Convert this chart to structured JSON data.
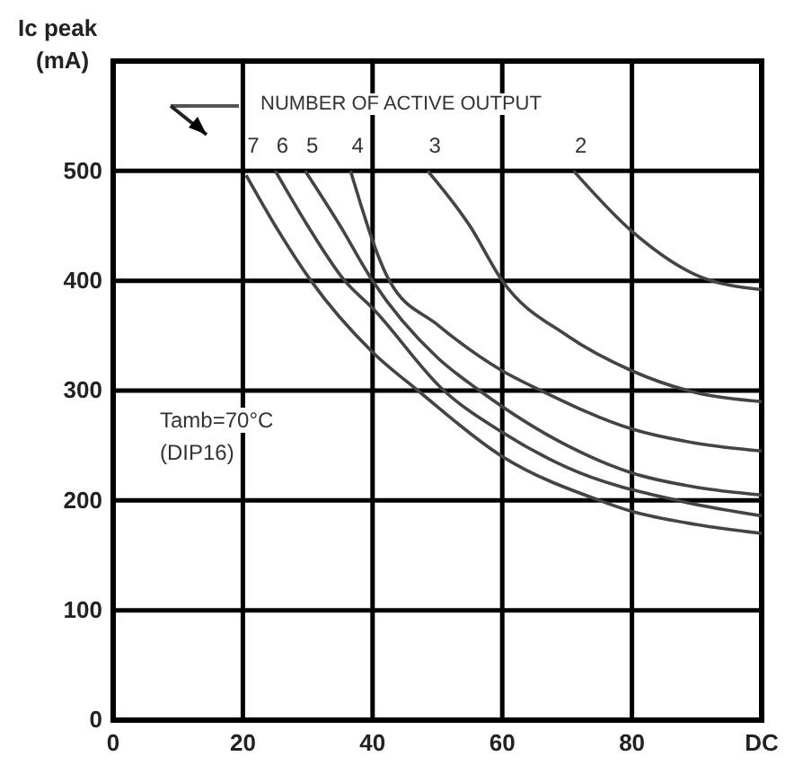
{
  "chart_data": {
    "type": "line",
    "ylabel": "Ic peak (mA)",
    "xlim": [
      0,
      100
    ],
    "ylim": [
      0,
      600
    ],
    "xticks": [
      0,
      20,
      40,
      60,
      80,
      {
        "value": 100,
        "label": "DC"
      }
    ],
    "yticks": [
      0,
      100,
      200,
      300,
      400,
      500
    ],
    "grid": true,
    "marker": "none",
    "line_style": "solid",
    "annotations": [
      "NUMBER OF ACTIVE OUTPUT",
      "Tamb=70°C",
      "(DIP16)"
    ],
    "series": [
      {
        "name": "7",
        "color": "#444444",
        "x": [
          20.5,
          25,
          30.5,
          40,
          47,
          60,
          75,
          80,
          90,
          100
        ],
        "values": [
          496,
          450,
          400,
          335,
          300,
          240,
          200,
          190,
          178,
          170
        ]
      },
      {
        "name": "6",
        "color": "#444444",
        "x": [
          25,
          30,
          35.7,
          40,
          51,
          60,
          70,
          87,
          100
        ],
        "values": [
          500,
          450,
          400,
          375,
          300,
          262,
          230,
          200,
          186
        ]
      },
      {
        "name": "5",
        "color": "#444444",
        "x": [
          29.6,
          35,
          40,
          50,
          56.5,
          70,
          80,
          90,
          100
        ],
        "values": [
          500,
          450,
          400,
          330,
          300,
          250,
          225,
          212,
          205
        ]
      },
      {
        "name": "4",
        "color": "#444444",
        "x": [
          36.6,
          42.6,
          50,
          60,
          66,
          80,
          90,
          100
        ],
        "values": [
          500,
          400,
          360,
          318,
          300,
          265,
          252,
          245
        ]
      },
      {
        "name": "3",
        "color": "#444444",
        "x": [
          48.5,
          55,
          60,
          70,
          80,
          90,
          100
        ],
        "values": [
          500,
          450,
          400,
          350,
          318,
          298,
          290
        ]
      },
      {
        "name": "2",
        "color": "#444444",
        "x": [
          71,
          80,
          90,
          100
        ],
        "values": [
          500,
          445,
          405,
          392
        ]
      }
    ]
  }
}
